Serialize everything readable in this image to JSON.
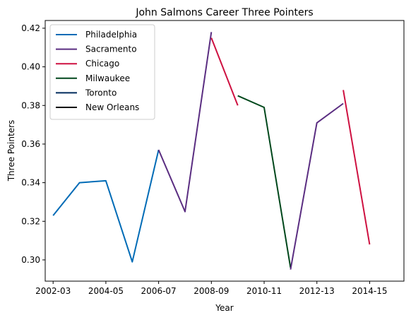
{
  "chart_data": {
    "type": "line",
    "title": "John Salmons Career Three Pointers",
    "xlabel": "Year",
    "ylabel": "Three Pointers",
    "ylim": [
      0.289,
      0.424
    ],
    "xlim": [
      2001.7,
      2015.3
    ],
    "x_ticks": [
      {
        "value": 2002,
        "label": "2002-03"
      },
      {
        "value": 2004,
        "label": "2004-05"
      },
      {
        "value": 2006,
        "label": "2006-07"
      },
      {
        "value": 2008,
        "label": "2008-09"
      },
      {
        "value": 2010,
        "label": "2010-11"
      },
      {
        "value": 2012,
        "label": "2012-13"
      },
      {
        "value": 2014,
        "label": "2014-15"
      }
    ],
    "y_ticks": [
      0.3,
      0.32,
      0.34,
      0.36,
      0.38,
      0.4,
      0.42
    ],
    "y_tick_labels": [
      "0.30",
      "0.32",
      "0.34",
      "0.36",
      "0.38",
      "0.40",
      "0.42"
    ],
    "legend_position": "top-left",
    "grid": false,
    "series": [
      {
        "name": "Philadelphia",
        "color": "#006bb6",
        "x": [
          2002,
          2003,
          2004,
          2005,
          2006
        ],
        "y": [
          0.323,
          0.34,
          0.341,
          0.299,
          0.357
        ]
      },
      {
        "name": "Sacramento",
        "color": "#5a2d81",
        "x": [
          2006,
          2007,
          2008
        ],
        "y": [
          0.357,
          0.325,
          0.418
        ]
      },
      {
        "name": "Chicago",
        "color": "#ce1141",
        "x": [
          2008,
          2009
        ],
        "y": [
          0.415,
          0.38
        ]
      },
      {
        "name": "Milwaukee",
        "color": "#00471b",
        "x": [
          2009,
          2010,
          2011
        ],
        "y": [
          0.385,
          0.379,
          0.296
        ]
      },
      {
        "name": "Sacramento",
        "color": "#5a2d81",
        "x": [
          2011,
          2012,
          2013
        ],
        "y": [
          0.295,
          0.371,
          0.381
        ]
      },
      {
        "name": "Toronto",
        "color": "#002b5c",
        "x": [],
        "y": []
      },
      {
        "name": "Chicago",
        "color": "#ce1141",
        "x": [
          2013,
          2014
        ],
        "y": [
          0.388,
          0.308
        ]
      },
      {
        "name": "New Orleans",
        "color": "#000000",
        "x": [],
        "y": []
      }
    ],
    "legend": [
      {
        "label": "Philadelphia",
        "color": "#006bb6"
      },
      {
        "label": "Sacramento",
        "color": "#5a2d81"
      },
      {
        "label": "Chicago",
        "color": "#ce1141"
      },
      {
        "label": "Milwaukee",
        "color": "#00471b"
      },
      {
        "label": "Toronto",
        "color": "#002b5c"
      },
      {
        "label": "New Orleans",
        "color": "#000000"
      }
    ]
  }
}
